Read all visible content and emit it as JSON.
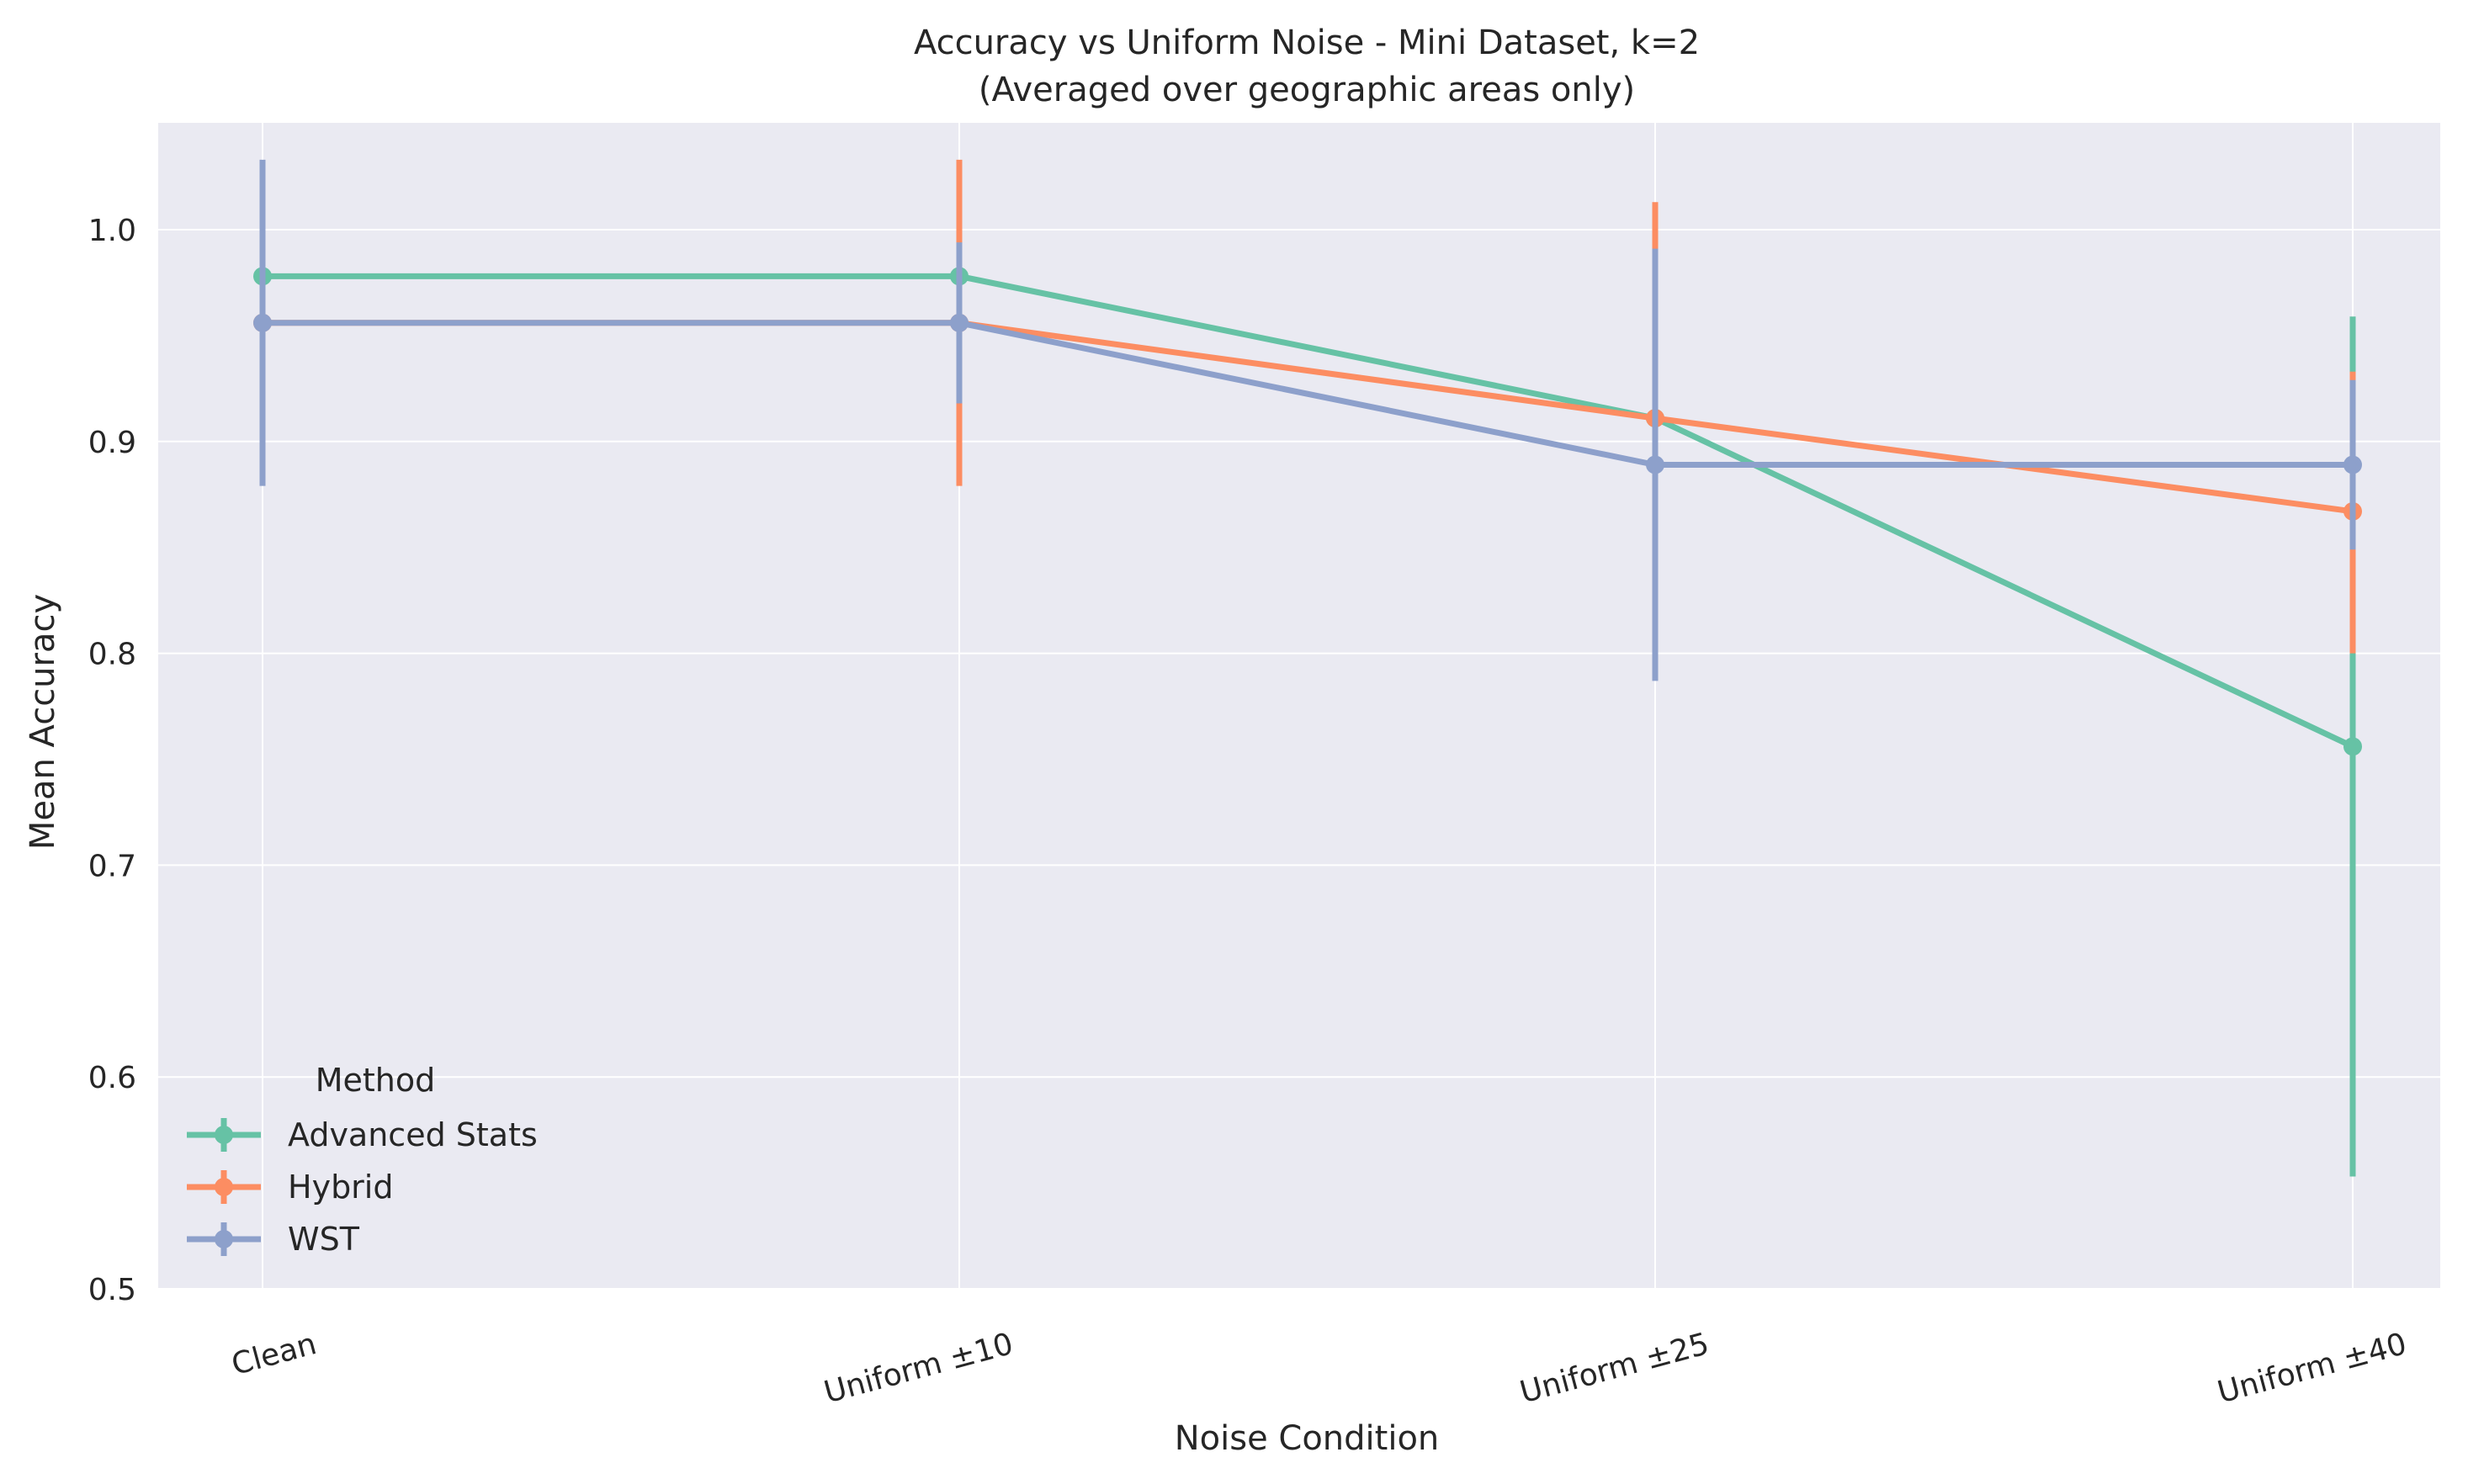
{
  "chart_data": {
    "type": "line",
    "title": "Accuracy vs Uniform Noise - Mini Dataset, k=2",
    "subtitle": "(Averaged over geographic areas only)",
    "xlabel": "Noise Condition",
    "ylabel": "Mean Accuracy",
    "categories": [
      "Clean",
      "Uniform ±10",
      "Uniform ±25",
      "Uniform ±40"
    ],
    "ylim": [
      0.5,
      1.05
    ],
    "yticks": [
      0.5,
      0.6,
      0.7,
      0.8,
      0.9,
      1.0
    ],
    "ytick_labels": [
      "0.5",
      "0.6",
      "0.7",
      "0.8",
      "0.9",
      "1.0"
    ],
    "grid": true,
    "legend_title": "Method",
    "legend_position": "lower-left",
    "series": [
      {
        "name": "Advanced Stats",
        "color": "#66c2a5",
        "values": [
          0.978,
          0.978,
          0.911,
          0.756
        ],
        "err_low": [
          0.978,
          0.978,
          0.911,
          0.553
        ],
        "err_high": [
          0.978,
          0.978,
          0.911,
          0.959
        ]
      },
      {
        "name": "Hybrid",
        "color": "#fc8d62",
        "values": [
          0.956,
          0.956,
          0.911,
          0.867
        ],
        "err_low": [
          0.956,
          0.879,
          0.911,
          0.8
        ],
        "err_high": [
          0.956,
          1.033,
          1.013,
          0.933
        ]
      },
      {
        "name": "WST",
        "color": "#8da0cb",
        "values": [
          0.956,
          0.956,
          0.889,
          0.889
        ],
        "err_low": [
          0.879,
          0.918,
          0.787,
          0.849
        ],
        "err_high": [
          1.033,
          0.994,
          0.991,
          0.929
        ]
      }
    ]
  }
}
